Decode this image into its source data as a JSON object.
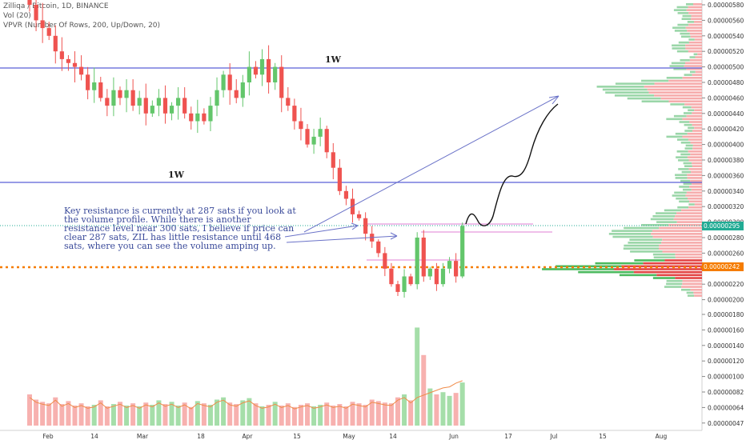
{
  "header": {
    "symbol_line": "Zilliqa / Bitcoin, 1D, BINANCE",
    "vol_line": "Vol (20)",
    "vpvr_line": "VPVR (Number Of Rows, 200, Up/Down, 20)"
  },
  "annotation_text": "Key resistance is currently at 287 sats if you look at the volume profile. While there is another resistance level near 300 sats, I believe if price can clear 287 sats, ZIL has little resistance until 468 sats, where you can see the volume amping up.",
  "level_labels": {
    "upper": "1W",
    "lower": "1W"
  },
  "colors": {
    "up": "#63c66b",
    "down": "#ef5350",
    "level_line": "#5b5fd6",
    "last_price": "#22ab94",
    "poc_price": "#f57c00",
    "vpvr_up": "#8fd19e",
    "vpvr_down": "#f5a3a3"
  },
  "chart_data": {
    "type": "candlestick",
    "ylim": [
      4e-07,
      5.95e-06
    ],
    "y_ticks": [
      "0.00000580",
      "0.00000560",
      "0.00000540",
      "0.00000520",
      "0.00000500",
      "0.00000480",
      "0.00000460",
      "0.00000440",
      "0.00000420",
      "0.00000400",
      "0.00000380",
      "0.00000360",
      "0.00000340",
      "0.00000320",
      "0.00000300",
      "0.00000280",
      "0.00000260",
      "0.00000240",
      "0.00000220",
      "0.00000200",
      "0.00000180",
      "0.00000160",
      "0.00000140",
      "0.00000120",
      "0.00000100",
      "0.00000082",
      "0.00000064",
      "0.00000047"
    ],
    "x_ticks": [
      "Feb",
      "14",
      "Mar",
      "18",
      "Apr",
      "15",
      "May",
      "14",
      "Jun",
      "17",
      "Jul",
      "15",
      "Aug"
    ],
    "last_price": "0.00000295",
    "poc_price": "0.00000242",
    "weekly_levels": [
      5e-06,
      3.51e-06
    ],
    "resistance_zones": [
      2.97e-06,
      2.87e-06,
      2.48e-06
    ],
    "closes": [
      5.8e-06,
      5.6e-06,
      5.5e-06,
      5.4e-06,
      5.2e-06,
      5.1e-06,
      5.05e-06,
      5e-06,
      4.9e-06,
      4.7e-06,
      4.8e-06,
      4.6e-06,
      4.5e-06,
      4.7e-06,
      4.6e-06,
      4.7e-06,
      4.5e-06,
      4.6e-06,
      4.4e-06,
      4.5e-06,
      4.6e-06,
      4.4e-06,
      4.5e-06,
      4.6e-06,
      4.4e-06,
      4.3e-06,
      4.4e-06,
      4.3e-06,
      4.5e-06,
      4.7e-06,
      4.9e-06,
      4.7e-06,
      4.6e-06,
      4.8e-06,
      5e-06,
      4.9e-06,
      5.1e-06,
      4.8e-06,
      5e-06,
      4.6e-06,
      4.5e-06,
      4.3e-06,
      4.2e-06,
      4e-06,
      4.1e-06,
      4.2e-06,
      3.9e-06,
      3.7e-06,
      3.4e-06,
      3.3e-06,
      3.1e-06,
      3.05e-06,
      2.85e-06,
      2.75e-06,
      2.6e-06,
      2.4e-06,
      2.2e-06,
      2.1e-06,
      2.3e-06,
      2.2e-06,
      2.8e-06,
      2.3e-06,
      2.4e-06,
      2.2e-06,
      2.4e-06,
      2.5e-06,
      2.3e-06,
      2.95e-06
    ],
    "volumes": [
      8.2e-07,
      7.5e-07,
      7.2e-07,
      7e-07,
      7.8e-07,
      6.9e-07,
      7.3e-07,
      6.7e-07,
      7e-07,
      6.6e-07,
      6.8e-07,
      7.4e-07,
      6.6e-07,
      6.9e-07,
      7.2e-07,
      6.7e-07,
      7e-07,
      6.6e-07,
      7.1e-07,
      6.8e-07,
      7.4e-07,
      6.9e-07,
      7.2e-07,
      6.7e-07,
      7.1e-07,
      6.5e-07,
      7.3e-07,
      7e-07,
      6.8e-07,
      7.5e-07,
      7.8e-07,
      7.1e-07,
      6.9e-07,
      7.4e-07,
      7.7e-07,
      7e-07,
      6.6e-07,
      6.8e-07,
      7.2e-07,
      6.7e-07,
      7e-07,
      6.5e-07,
      6.8e-07,
      7e-07,
      6.6e-07,
      6.8e-07,
      7.1e-07,
      6.7e-07,
      6.9e-07,
      6.6e-07,
      7.2e-07,
      7e-07,
      6.8e-07,
      7.5e-07,
      7.3e-07,
      7.1e-07,
      7e-07,
      7.8e-07,
      8.2e-07,
      7.4e-07,
      1.72e-06,
      1.35e-06,
      9e-07,
      8.2e-07,
      8.5e-07,
      8e-07,
      8.4e-07,
      9.8e-07
    ]
  }
}
